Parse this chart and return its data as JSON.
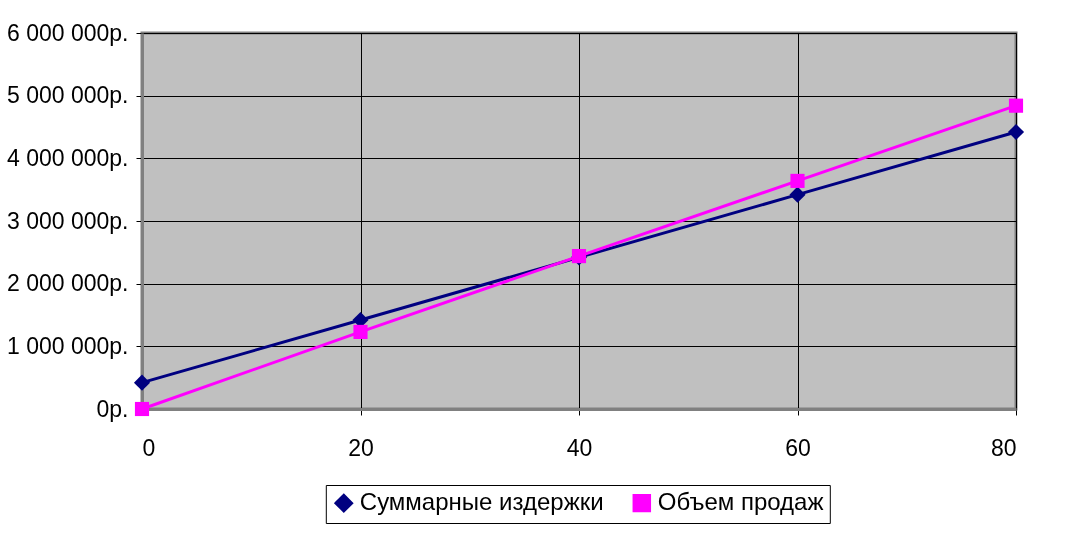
{
  "chart_data": {
    "type": "line",
    "x": [
      0,
      20,
      40,
      60,
      80
    ],
    "series": [
      {
        "name": "Суммарные издержки",
        "color": "#000080",
        "marker": "diamond",
        "values": [
          420000,
          1420000,
          2420000,
          3420000,
          4420000
        ]
      },
      {
        "name": "Объем продаж",
        "color": "#ff00ff",
        "marker": "square",
        "values": [
          0,
          1230000,
          2440000,
          3640000,
          4840000
        ]
      }
    ],
    "xlim": [
      0,
      80
    ],
    "xticks": [
      0,
      20,
      40,
      60,
      80
    ],
    "ylim": [
      0,
      6000000
    ],
    "yticks": [
      {
        "value": 0,
        "label": "0р."
      },
      {
        "value": 1000000,
        "label": "1 000 000р."
      },
      {
        "value": 2000000,
        "label": "2 000 000р."
      },
      {
        "value": 3000000,
        "label": "3 000 000р."
      },
      {
        "value": 4000000,
        "label": "4 000 000р."
      },
      {
        "value": 5000000,
        "label": "5 000 000р."
      },
      {
        "value": 6000000,
        "label": "6 000 000р."
      }
    ],
    "grid": true,
    "legend": "bottom",
    "line_style": "solid"
  }
}
